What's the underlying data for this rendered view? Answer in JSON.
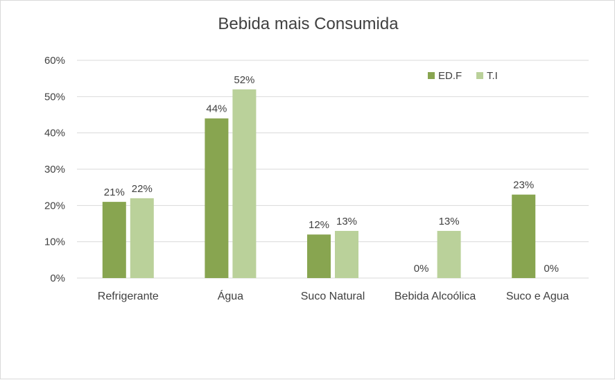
{
  "chart_data": {
    "type": "bar",
    "title": "Bebida mais Consumida",
    "categories": [
      "Refrigerante",
      "Água",
      "Suco Natural",
      "Bebida Alcoólica",
      "Suco e Agua"
    ],
    "series": [
      {
        "name": "ED.F",
        "values": [
          21,
          44,
          12,
          0,
          23
        ],
        "color": "#88a550",
        "labels": [
          "21%",
          "44%",
          "12%",
          "0%",
          "23%"
        ]
      },
      {
        "name": "T.I",
        "values": [
          22,
          52,
          13,
          13,
          0
        ],
        "color": "#bad19a",
        "labels": [
          "22%",
          "52%",
          "13%",
          "13%",
          "0%"
        ]
      }
    ],
    "ylim": [
      0,
      60
    ],
    "yticks": [
      0,
      10,
      20,
      30,
      40,
      50,
      60
    ],
    "ytick_labels": [
      "0%",
      "10%",
      "20%",
      "30%",
      "40%",
      "50%",
      "60%"
    ],
    "grid": true,
    "legend_position": "top-right",
    "gridline_color": "#d9d9d9",
    "text_color": "#404040"
  }
}
